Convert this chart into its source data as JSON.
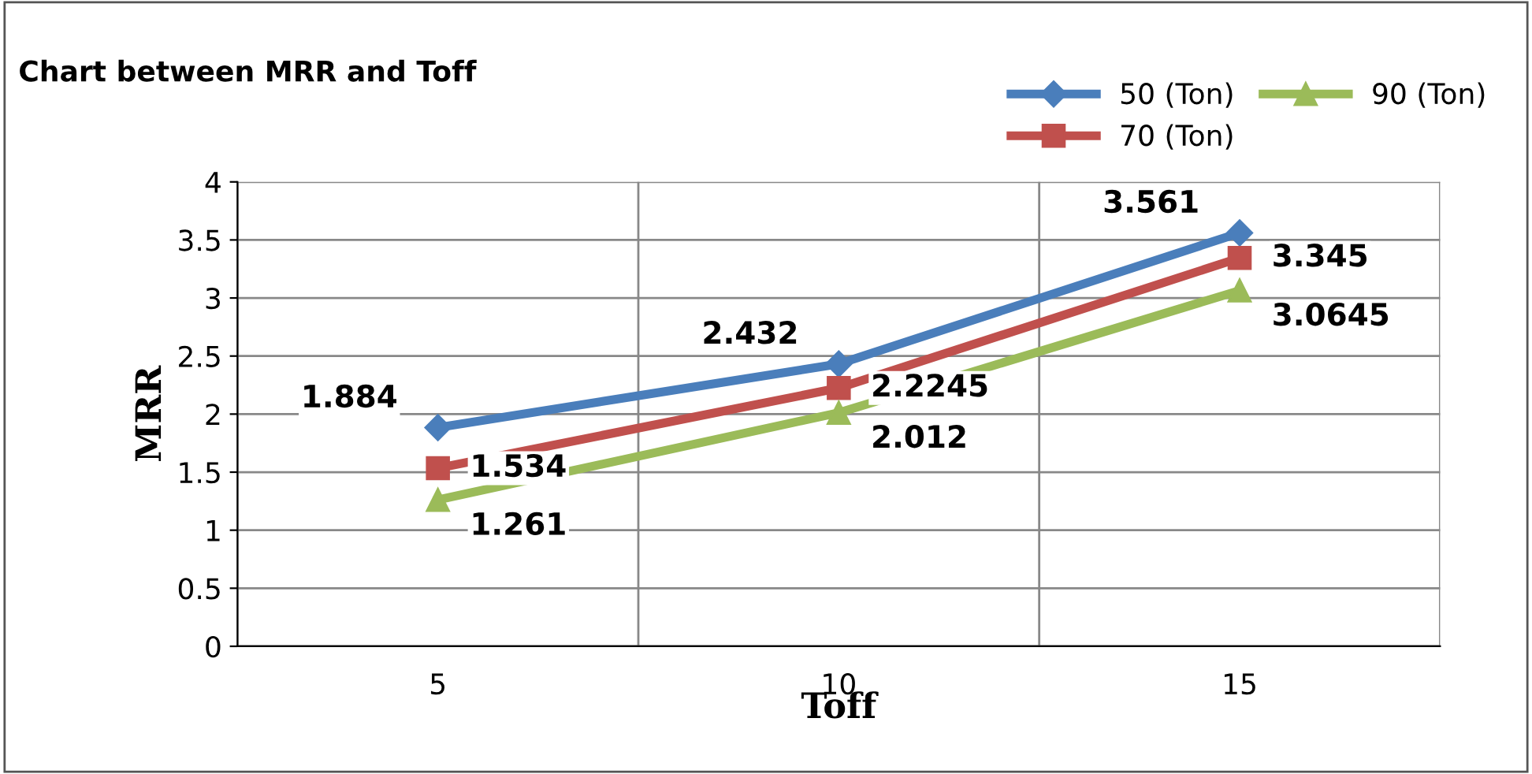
{
  "chart_data": {
    "type": "line",
    "title": "Chart between MRR and Toff",
    "xlabel": "Toff",
    "ylabel": "MRR",
    "categories": [
      "5",
      "10",
      "15"
    ],
    "series": [
      {
        "name": "50 (Ton)",
        "color": "#4a7ebb",
        "marker": "diamond",
        "values": [
          1.884,
          2.432,
          3.561
        ]
      },
      {
        "name": "70 (Ton)",
        "color": "#c0504d",
        "marker": "square",
        "values": [
          1.534,
          2.2245,
          3.345
        ]
      },
      {
        "name": "90 (Ton)",
        "color": "#9bbb59",
        "marker": "triangle",
        "values": [
          1.261,
          2.012,
          3.0645
        ]
      }
    ],
    "ylim": [
      0,
      4
    ],
    "yticks": [
      0,
      0.5,
      1,
      1.5,
      2,
      2.5,
      3,
      3.5,
      4
    ],
    "grid": true,
    "legend": "top right",
    "data_labels": true,
    "line_style": "solid"
  }
}
